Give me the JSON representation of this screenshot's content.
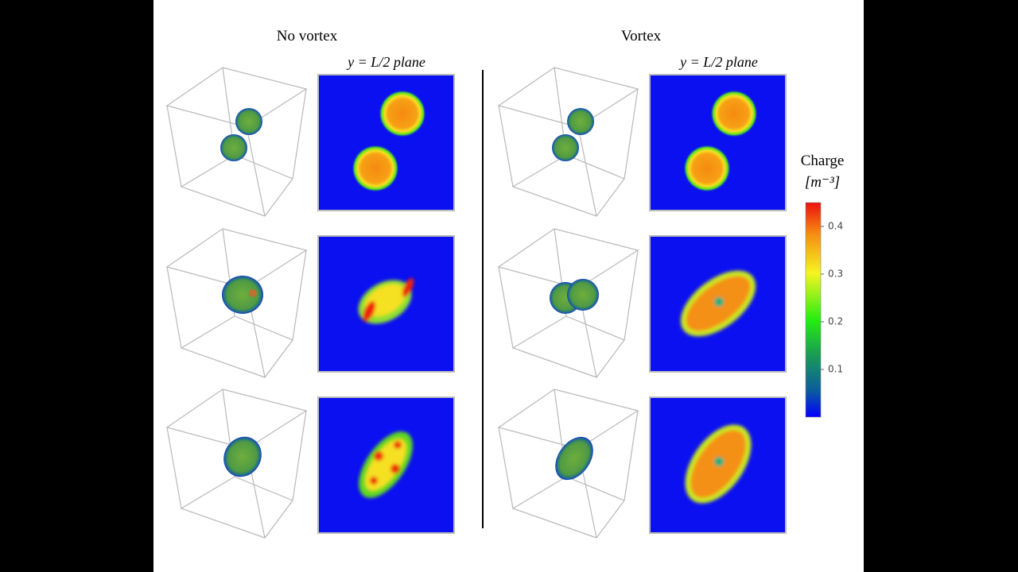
{
  "columns": [
    {
      "title": "No vortex",
      "slice_label": "y = L/2 plane"
    },
    {
      "title": "Vortex",
      "slice_label": "y = L/2 plane"
    }
  ],
  "colorbar": {
    "title": "Charge",
    "unit": "[m⁻³]",
    "lim": [
      0,
      0.45
    ],
    "ticks": [
      0.1,
      0.2,
      0.3,
      0.4
    ]
  }
}
